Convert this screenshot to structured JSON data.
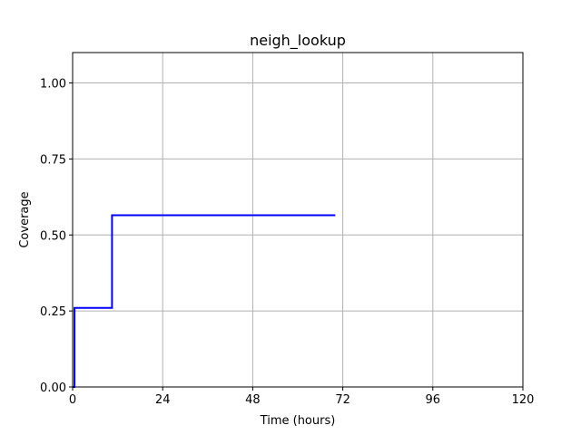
{
  "chart_data": {
    "type": "line",
    "title": "neigh_lookup",
    "xlabel": "Time (hours)",
    "ylabel": "Coverage",
    "xlim": [
      0,
      120
    ],
    "ylim": [
      0,
      1.1
    ],
    "xticks": [
      0,
      24,
      48,
      72,
      96,
      120
    ],
    "xtick_labels": [
      "0",
      "24",
      "48",
      "72",
      "96",
      "120"
    ],
    "yticks": [
      0,
      0.25,
      0.5,
      0.75,
      1.0
    ],
    "ytick_labels": [
      "0.00",
      "0.25",
      "0.50",
      "0.75",
      "1.00"
    ],
    "grid": true,
    "line_style": "step",
    "series": [
      {
        "color": "#0000ff",
        "x": [
          0,
          0.5,
          10.5,
          70
        ],
        "y": [
          0,
          0.26,
          0.565,
          0.565
        ]
      }
    ]
  }
}
